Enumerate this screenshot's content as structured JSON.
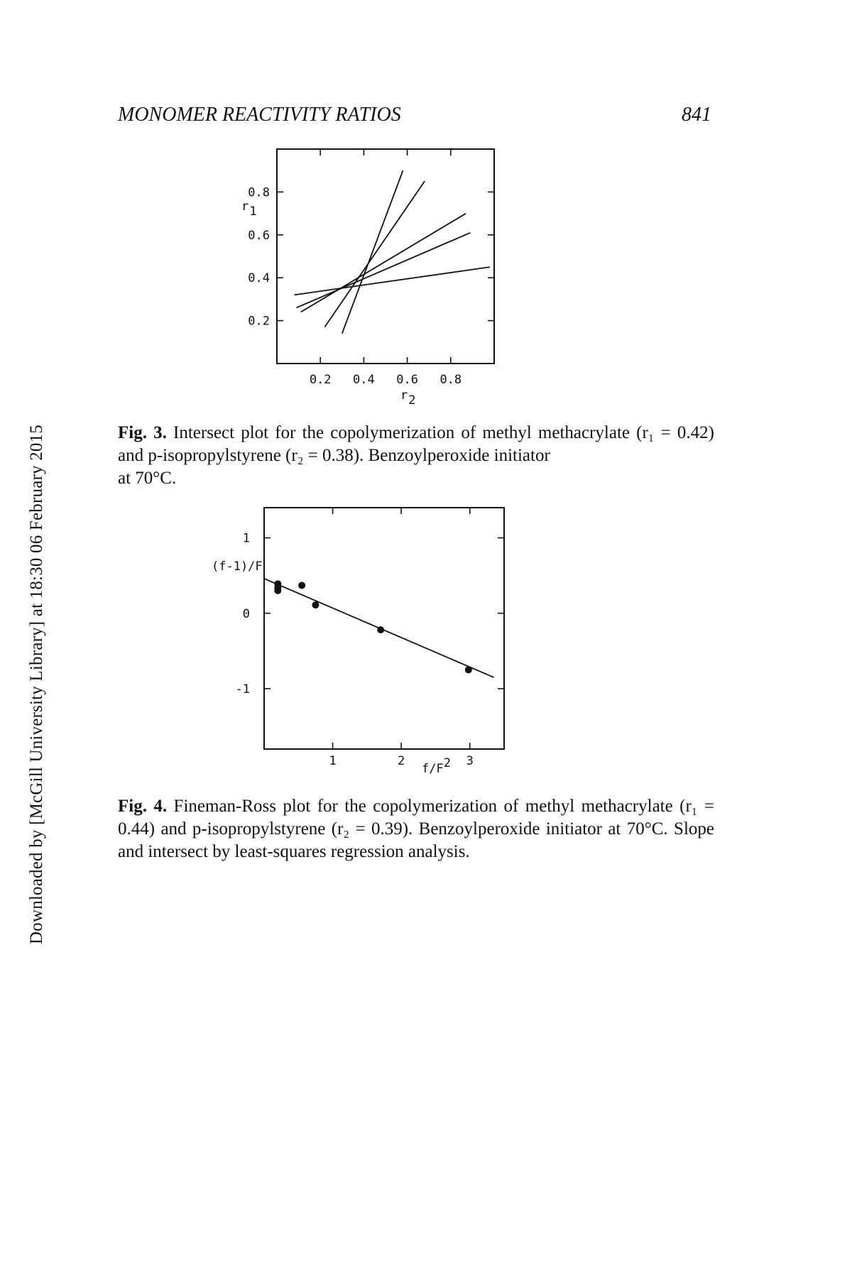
{
  "page": {
    "running_title": "MONOMER REACTIVITY RATIOS",
    "page_number": "841",
    "side_note": "Downloaded by [McGill University Library] at 18:30 06 February 2015"
  },
  "figures": [
    {
      "label": "Fig. 3.",
      "caption_main": "Intersect plot for the copolymerization of methyl methacrylate (r₁ = 0.42) and p-isopropylstyrene (r₂ = 0.38). Benzoylperoxide initiator",
      "caption_tail": "at 70°C.",
      "y_label_main": "r",
      "y_label_sub": "1",
      "x_label_main": "r",
      "x_label_sub": "2"
    },
    {
      "label": "Fig. 4.",
      "caption": "Fineman-Ross plot for the copolymerization of methyl methacrylate (r₁ = 0.44) and p-isopropylstyrene (r₂ = 0.39). Benzoylperoxide initiator at 70°C. Slope and intersect by least-squares regression analysis.",
      "y_label": "(f-1)/F",
      "x_label_main": "f/F",
      "x_label_sup": "2"
    }
  ],
  "chart_data": [
    {
      "type": "line",
      "xlim": [
        0.0,
        1.0
      ],
      "ylim": [
        0.0,
        1.0
      ],
      "x_ticks": [
        0.2,
        0.4,
        0.6,
        0.8
      ],
      "x_tick_labels": [
        "0.2",
        "0.4",
        "0.6",
        "0.8"
      ],
      "y_ticks": [
        0.2,
        0.4,
        0.6,
        0.8
      ],
      "y_tick_labels": [
        "0.2",
        "0.4",
        "0.6",
        "0.8"
      ],
      "grid": false,
      "lines": [
        {
          "x": [
            0.3,
            0.58
          ],
          "y": [
            0.14,
            0.9
          ]
        },
        {
          "x": [
            0.22,
            0.68
          ],
          "y": [
            0.17,
            0.85
          ]
        },
        {
          "x": [
            0.11,
            0.87
          ],
          "y": [
            0.24,
            0.7
          ]
        },
        {
          "x": [
            0.09,
            0.89
          ],
          "y": [
            0.26,
            0.61
          ]
        },
        {
          "x": [
            0.08,
            0.98
          ],
          "y": [
            0.32,
            0.45
          ]
        }
      ]
    },
    {
      "type": "scatter",
      "xlim": [
        0.0,
        3.5
      ],
      "ylim": [
        -1.8,
        1.4
      ],
      "x_ticks": [
        1,
        2,
        3
      ],
      "x_tick_labels": [
        "1",
        "2",
        "3"
      ],
      "y_ticks": [
        -1,
        0,
        1
      ],
      "y_tick_labels": [
        "-1",
        "0",
        "1"
      ],
      "grid": false,
      "points": [
        {
          "x": 0.2,
          "y": 0.39
        },
        {
          "x": 0.2,
          "y": 0.34
        },
        {
          "x": 0.2,
          "y": 0.3
        },
        {
          "x": 0.55,
          "y": 0.37
        },
        {
          "x": 0.75,
          "y": 0.11
        },
        {
          "x": 1.7,
          "y": -0.22
        },
        {
          "x": 2.98,
          "y": -0.75
        }
      ],
      "fit_line": {
        "x": [
          0.0,
          3.35
        ],
        "y": [
          0.46,
          -0.85
        ]
      }
    }
  ]
}
